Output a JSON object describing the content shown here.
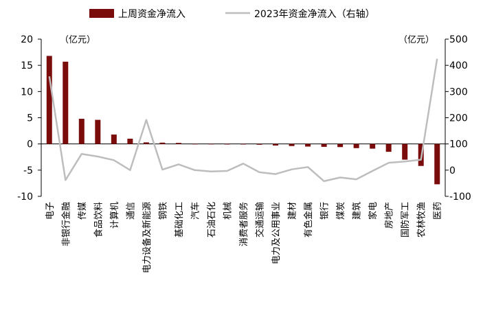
{
  "chart_data": {
    "type": "bar",
    "units": {
      "left": "（亿元）",
      "right": "（亿元）"
    },
    "legend": [
      {
        "name": "上周资金净流入",
        "style": "bar",
        "color": "#7b0c0c"
      },
      {
        "name": "2023年资金净流入（右轴）",
        "style": "line",
        "color": "#bdbdbd"
      }
    ],
    "legend_position": "top",
    "grid": false,
    "ylim_left": [
      -10,
      20
    ],
    "yticks_left": [
      -10,
      -5,
      0,
      5,
      10,
      15,
      20
    ],
    "ylim_right": [
      -100,
      500
    ],
    "yticks_right": [
      -100,
      0,
      100,
      200,
      300,
      400,
      500
    ],
    "categories": [
      "电子",
      "非银行金融",
      "传媒",
      "食品饮料",
      "计算机",
      "通信",
      "电力设备及新能源",
      "钢铁",
      "基础化工",
      "汽车",
      "石油石化",
      "机械",
      "消费者服务",
      "交通运输",
      "电力及公用事业",
      "建材",
      "有色金属",
      "银行",
      "煤炭",
      "建筑",
      "家电",
      "房地产",
      "国防军工",
      "农林牧渔",
      "医药"
    ],
    "series": [
      {
        "name": "上周资金净流入",
        "type": "bar",
        "axis": "left",
        "values": [
          16.8,
          15.7,
          4.8,
          4.6,
          1.8,
          1.0,
          0.3,
          0.25,
          0.2,
          0.0,
          -0.05,
          -0.1,
          -0.1,
          -0.15,
          -0.3,
          -0.4,
          -0.5,
          -0.55,
          -0.6,
          -0.8,
          -0.9,
          -1.5,
          -3.0,
          -4.2,
          -7.7
        ]
      },
      {
        "name": "2023年资金净流入（右轴）",
        "type": "line",
        "axis": "right",
        "values": [
          358,
          -38,
          62,
          52,
          38,
          0,
          192,
          2,
          22,
          0,
          -5,
          -3,
          25,
          -8,
          -15,
          3,
          12,
          -42,
          -28,
          -35,
          -3,
          28,
          33,
          40,
          425
        ]
      }
    ]
  }
}
